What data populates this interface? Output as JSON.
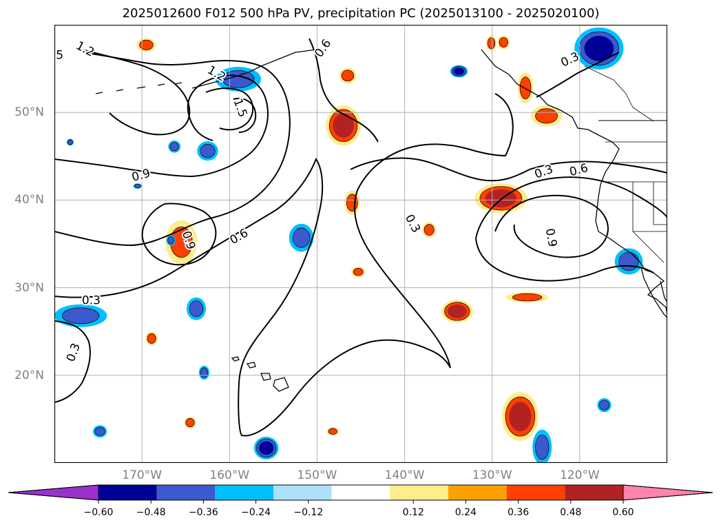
{
  "title": "2025012600 F012 500 hPa PV, precipitation PC (2025013100 - 2025020100)",
  "map": {
    "projection": "PlateCarree",
    "lon_range": [
      -180,
      -110
    ],
    "lat_range": [
      10,
      60
    ],
    "lat_ticks": [
      {
        "value": 50,
        "label": "50°N"
      },
      {
        "value": 40,
        "label": "40°N"
      },
      {
        "value": 30,
        "label": "30°N"
      },
      {
        "value": 20,
        "label": "20°N"
      }
    ],
    "lon_ticks": [
      {
        "value": -170,
        "label": "170°W"
      },
      {
        "value": -160,
        "label": "160°W"
      },
      {
        "value": -150,
        "label": "150°W"
      },
      {
        "value": -140,
        "label": "140°W"
      },
      {
        "value": -130,
        "label": "130°W"
      },
      {
        "value": -120,
        "label": "120°W"
      }
    ],
    "gridlines": true,
    "grid_color": "#b0b0b0"
  },
  "contour_labels": [
    {
      "text": "5",
      "lon": -179.4,
      "lat": 56.5,
      "rot": 0
    },
    {
      "text": "1.2",
      "lon": -176.5,
      "lat": 57.2,
      "rot": 28
    },
    {
      "text": "1.2",
      "lon": -161.5,
      "lat": 54.4,
      "rot": 30
    },
    {
      "text": "1.5",
      "lon": -158.8,
      "lat": 50.5,
      "rot": 70
    },
    {
      "text": "0.6",
      "lon": -149.3,
      "lat": 57.3,
      "rot": -55
    },
    {
      "text": "0.9",
      "lon": -170.1,
      "lat": 42.8,
      "rot": -15
    },
    {
      "text": "0.9",
      "lon": -164.7,
      "lat": 35.4,
      "rot": 72
    },
    {
      "text": "0.6",
      "lon": -158.9,
      "lat": 35.8,
      "rot": -30
    },
    {
      "text": "0.3",
      "lon": -175.8,
      "lat": 28.5,
      "rot": 0
    },
    {
      "text": "0.3",
      "lon": -177.8,
      "lat": 22.6,
      "rot": -70
    },
    {
      "text": "0.3",
      "lon": -139.1,
      "lat": 37.3,
      "rot": 62
    },
    {
      "text": "0.3",
      "lon": -121.1,
      "lat": 56.0,
      "rot": -25
    },
    {
      "text": "0.3",
      "lon": -124.1,
      "lat": 43.2,
      "rot": -20
    },
    {
      "text": "0.6",
      "lon": -120.1,
      "lat": 43.4,
      "rot": -15
    },
    {
      "text": "0.9",
      "lon": -123.3,
      "lat": 35.7,
      "rot": 80
    }
  ],
  "colorbar": {
    "levels": [
      -0.72,
      -0.6,
      -0.48,
      -0.36,
      -0.24,
      -0.12,
      0.12,
      0.24,
      0.36,
      0.48,
      0.6,
      0.72
    ],
    "colors": [
      "#000096",
      "#3a5acd",
      "#00bfff",
      "#ade1fa",
      "#ffffff",
      "#ffec8b",
      "#ffa000",
      "#ff4000",
      "#b22222",
      "#ff83aa"
    ],
    "under_color": "#9932cc",
    "over_color": "#ff83aa",
    "tick_values": [
      -0.6,
      -0.48,
      -0.36,
      -0.24,
      -0.12,
      0.12,
      0.24,
      0.36,
      0.48,
      0.6
    ],
    "tick_labels": [
      "−0.60",
      "−0.48",
      "−0.36",
      "−0.24",
      "−0.12",
      "0.12",
      "0.24",
      "0.36",
      "0.48",
      "0.60"
    ]
  },
  "colors": {
    "contour": "#000000",
    "coast": "#000000"
  },
  "blobs": [
    {
      "lon": -147,
      "lat": 48.5,
      "rx": 2.0,
      "ry": 2.3,
      "levels": [
        "#ffec8b",
        "#ff4000",
        "#b22222"
      ]
    },
    {
      "lon": -146.5,
      "lat": 54.2,
      "rx": 1.0,
      "ry": 0.9,
      "levels": [
        "#ffec8b",
        "#ff4000"
      ]
    },
    {
      "lon": -169.5,
      "lat": 57.7,
      "rx": 1.1,
      "ry": 0.8,
      "levels": [
        "#ffec8b",
        "#ff4000"
      ]
    },
    {
      "lon": -165.5,
      "lat": 35.2,
      "rx": 1.8,
      "ry": 2.5,
      "levels": [
        "#ffec8b",
        "#ff4000"
      ]
    },
    {
      "lon": -146.0,
      "lat": 39.7,
      "rx": 0.9,
      "ry": 1.4,
      "levels": [
        "#ffec8b",
        "#ff4000"
      ]
    },
    {
      "lon": -145.3,
      "lat": 31.8,
      "rx": 0.8,
      "ry": 0.6,
      "levels": [
        "#ffec8b",
        "#ff4000"
      ]
    },
    {
      "lon": -137.2,
      "lat": 36.6,
      "rx": 0.8,
      "ry": 0.9,
      "levels": [
        "#ffec8b",
        "#ff4000"
      ]
    },
    {
      "lon": -129.0,
      "lat": 40.2,
      "rx": 3.0,
      "ry": 1.7,
      "levels": [
        "#ffec8b",
        "#ff4000",
        "#b22222"
      ]
    },
    {
      "lon": -126.2,
      "lat": 52.8,
      "rx": 0.9,
      "ry": 1.8,
      "levels": [
        "#ffec8b",
        "#ff4000"
      ]
    },
    {
      "lon": -123.8,
      "lat": 49.6,
      "rx": 1.8,
      "ry": 1.2,
      "levels": [
        "#ffec8b",
        "#ff4000"
      ]
    },
    {
      "lon": -128.7,
      "lat": 58.0,
      "rx": 0.7,
      "ry": 0.8,
      "levels": [
        "#ffec8b",
        "#ff4000"
      ]
    },
    {
      "lon": -134.0,
      "lat": 27.3,
      "rx": 1.8,
      "ry": 1.3,
      "levels": [
        "#ffec8b",
        "#ff4000",
        "#b22222"
      ]
    },
    {
      "lon": -126.0,
      "lat": 28.9,
      "rx": 2.4,
      "ry": 0.6,
      "levels": [
        "#ffec8b",
        "#ff4000"
      ]
    },
    {
      "lon": -126.8,
      "lat": 15.3,
      "rx": 2.1,
      "ry": 2.8,
      "levels": [
        "#ffec8b",
        "#ff4000",
        "#b22222"
      ]
    },
    {
      "lon": -168.9,
      "lat": 24.2,
      "rx": 0.7,
      "ry": 0.8,
      "levels": [
        "#ffec8b",
        "#ff4000"
      ]
    },
    {
      "lon": -164.5,
      "lat": 14.6,
      "rx": 0.7,
      "ry": 0.7,
      "levels": [
        "#ffec8b",
        "#ff4000"
      ]
    },
    {
      "lon": -148.2,
      "lat": 13.6,
      "rx": 0.7,
      "ry": 0.5,
      "levels": [
        "#ffec8b",
        "#ff4000"
      ]
    },
    {
      "lon": -130.1,
      "lat": 57.9,
      "rx": 0.6,
      "ry": 0.9,
      "levels": [
        "#ffec8b",
        "#ff4000"
      ]
    },
    {
      "lon": -159.0,
      "lat": 53.8,
      "rx": 2.6,
      "ry": 1.4,
      "levels": [
        "#00bfff",
        "#3a5acd"
      ]
    },
    {
      "lon": -162.5,
      "lat": 45.6,
      "rx": 1.2,
      "ry": 1.1,
      "levels": [
        "#00bfff",
        "#3a5acd"
      ]
    },
    {
      "lon": -166.3,
      "lat": 46.1,
      "rx": 0.7,
      "ry": 0.7,
      "levels": [
        "#00bfff",
        "#3a5acd"
      ]
    },
    {
      "lon": -151.8,
      "lat": 35.7,
      "rx": 1.4,
      "ry": 1.6,
      "levels": [
        "#00bfff",
        "#3a5acd"
      ]
    },
    {
      "lon": -177.0,
      "lat": 26.8,
      "rx": 3.0,
      "ry": 1.3,
      "levels": [
        "#00bfff",
        "#3a5acd"
      ]
    },
    {
      "lon": -163.8,
      "lat": 27.6,
      "rx": 1.1,
      "ry": 1.3,
      "levels": [
        "#00bfff",
        "#3a5acd"
      ]
    },
    {
      "lon": -166.7,
      "lat": 35.4,
      "rx": 0.5,
      "ry": 0.6,
      "levels": [
        "#00bfff",
        "#3a5acd"
      ]
    },
    {
      "lon": -133.8,
      "lat": 54.7,
      "rx": 1.0,
      "ry": 0.7,
      "levels": [
        "#00bfff",
        "#3a5acd",
        "#000096"
      ]
    },
    {
      "lon": -117.8,
      "lat": 57.3,
      "rx": 2.8,
      "ry": 2.4,
      "levels": [
        "#00bfff",
        "#3a5acd",
        "#000096"
      ]
    },
    {
      "lon": -114.4,
      "lat": 33.0,
      "rx": 1.6,
      "ry": 1.5,
      "levels": [
        "#00bfff",
        "#3a5acd"
      ]
    },
    {
      "lon": -155.8,
      "lat": 11.7,
      "rx": 1.4,
      "ry": 1.3,
      "levels": [
        "#00bfff",
        "#3a5acd",
        "#000096"
      ]
    },
    {
      "lon": -124.3,
      "lat": 11.8,
      "rx": 1.1,
      "ry": 2.0,
      "levels": [
        "#00bfff",
        "#3a5acd"
      ]
    },
    {
      "lon": -162.9,
      "lat": 20.3,
      "rx": 0.6,
      "ry": 0.8,
      "levels": [
        "#00bfff",
        "#3a5acd"
      ]
    },
    {
      "lon": -174.8,
      "lat": 13.6,
      "rx": 0.8,
      "ry": 0.7,
      "levels": [
        "#00bfff",
        "#3a5acd"
      ]
    },
    {
      "lon": -117.2,
      "lat": 16.6,
      "rx": 0.8,
      "ry": 0.8,
      "levels": [
        "#00bfff",
        "#3a5acd"
      ]
    },
    {
      "lon": -178.2,
      "lat": 46.6,
      "rx": 0.4,
      "ry": 0.4,
      "levels": [
        "#00bfff",
        "#3a5acd"
      ]
    },
    {
      "lon": -170.5,
      "lat": 41.6,
      "rx": 0.5,
      "ry": 0.3,
      "levels": [
        "#00bfff",
        "#3a5acd"
      ]
    }
  ]
}
